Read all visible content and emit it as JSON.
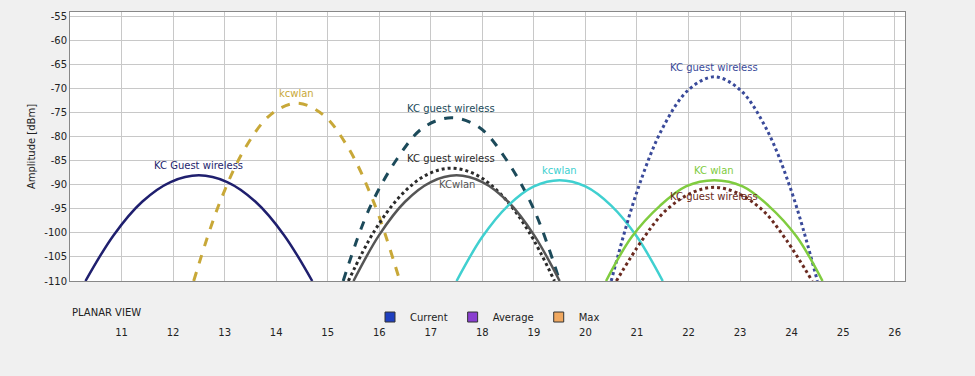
{
  "chart_data": {
    "type": "line",
    "y_label": "Amplitude [dBm]",
    "footer_label": "PLANAR VIEW",
    "xlim": [
      10,
      26.2
    ],
    "xticks": [
      11,
      12,
      13,
      14,
      15,
      16,
      17,
      18,
      19,
      20,
      21,
      22,
      23,
      24,
      25,
      26
    ],
    "ylim": [
      -110,
      -54
    ],
    "yticks": [
      -110,
      -105,
      -100,
      -95,
      -90,
      -85,
      -80,
      -75,
      -70,
      -65,
      -60,
      -55
    ],
    "grid": true,
    "legend": "bottom",
    "density_legend": [
      {
        "name": "Current",
        "color": "#1f3fbf"
      },
      {
        "name": "Average",
        "color": "#8a3fd0"
      },
      {
        "name": "Max",
        "color": "#f0a860"
      }
    ],
    "series": [
      {
        "name": "KC Guest wireless",
        "color": "#1f1f6e",
        "line_style": "solid",
        "x": [
          10.3,
          10.85,
          11.4,
          11.95,
          12.5,
          13.05,
          13.6,
          14.15,
          14.7
        ],
        "values": [
          -110,
          -100.4,
          -93.5,
          -89.4,
          -88,
          -89.4,
          -93.5,
          -100.4,
          -110
        ]
      },
      {
        "name": "kcwlan",
        "color": "#c8a838",
        "line_style": "dashed",
        "x": [
          12.4,
          12.9,
          13.4,
          13.9,
          14.4,
          14.9,
          15.4,
          15.9,
          16.4
        ],
        "values": [
          -110,
          -93.8,
          -82.3,
          -75.3,
          -73,
          -75.3,
          -82.3,
          -93.8,
          -110
        ]
      },
      {
        "name": "KC guest wireless",
        "color": "#1c4a5a",
        "line_style": "dashed",
        "x": [
          15.3,
          15.8,
          16.35,
          16.85,
          17.4,
          17.95,
          18.45,
          19.0,
          19.5
        ],
        "values": [
          -110,
          -95.1,
          -84.5,
          -78.1,
          -76,
          -78.1,
          -84.5,
          -95.1,
          -110
        ]
      },
      {
        "name": "KC guest wireless",
        "color": "#2a2a2a",
        "line_style": "dotted",
        "x": [
          15.4,
          15.9,
          16.4,
          16.9,
          17.4,
          17.9,
          18.4,
          18.9,
          19.4
        ],
        "values": [
          -110,
          -99.7,
          -92.4,
          -88,
          -86.5,
          -88,
          -92.4,
          -99.7,
          -110
        ]
      },
      {
        "name": "KCwlan",
        "color": "#555555",
        "line_style": "solid",
        "x": [
          15.5,
          16,
          16.5,
          17,
          17.5,
          18,
          18.5,
          19,
          19.5
        ],
        "values": [
          -110,
          -100.4,
          -93.5,
          -89.4,
          -88,
          -89.4,
          -93.5,
          -100.4,
          -110
        ]
      },
      {
        "name": "kcwlan",
        "color": "#40d0d0",
        "line_style": "solid",
        "x": [
          17.5,
          18,
          18.5,
          19,
          19.5,
          20,
          20.5,
          21,
          21.5
        ],
        "values": [
          -110,
          -100.8,
          -94.3,
          -90.3,
          -89,
          -90.3,
          -94.3,
          -100.8,
          -110
        ]
      },
      {
        "name": "KC guest wireless",
        "color": "#3a4a9a",
        "line_style": "dotted",
        "x": [
          20.5,
          21,
          21.5,
          22,
          22.5,
          23,
          23.5,
          24,
          24.5
        ],
        "values": [
          -110,
          -91.4,
          -78.1,
          -70.2,
          -67.5,
          -70.2,
          -78.1,
          -91.4,
          -110
        ]
      },
      {
        "name": "KC wlan",
        "color": "#80cc40",
        "line_style": "solid",
        "x": [
          20.4,
          20.9,
          21.45,
          21.95,
          22.5,
          23.05,
          23.55,
          24.1,
          24.6
        ],
        "values": [
          -110,
          -100.8,
          -94.3,
          -90.3,
          -89,
          -90.3,
          -94.3,
          -100.8,
          -110
        ]
      },
      {
        "name": "KC guest wireless",
        "color": "#6a2a20",
        "line_style": "dotted",
        "x": [
          20.6,
          21.1,
          21.55,
          22.05,
          22.5,
          22.95,
          23.45,
          23.9,
          24.4
        ],
        "values": [
          -110,
          -101.5,
          -95.4,
          -91.7,
          -90.5,
          -91.7,
          -95.4,
          -101.5,
          -110
        ]
      }
    ]
  }
}
